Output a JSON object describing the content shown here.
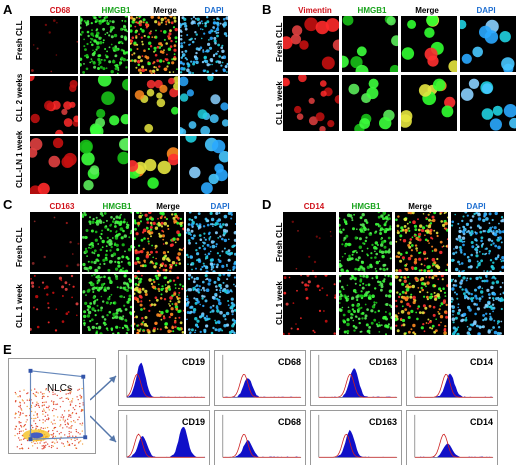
{
  "panels": {
    "A": {
      "letter": "A",
      "headers": [
        "CD68",
        "HMGB1",
        "Merge",
        "DAPI"
      ],
      "rows": [
        "Fresh CLL",
        "CLL 2 weeks",
        "CLL-LN 1 week"
      ]
    },
    "B": {
      "letter": "B",
      "headers": [
        "Vimentin",
        "HMGB1",
        "Merge",
        "DAPI"
      ],
      "rows": [
        "Fresh CLL",
        "CLL 1 week"
      ]
    },
    "C": {
      "letter": "C",
      "headers": [
        "CD163",
        "HMGB1",
        "Merge",
        "DAPI"
      ],
      "rows": [
        "Fresh CLL",
        "CLL 1 week"
      ]
    },
    "D": {
      "letter": "D",
      "headers": [
        "CD14",
        "HMGB1",
        "Merge",
        "DAPI"
      ],
      "rows": [
        "Fresh CLL",
        "CLL 1 week"
      ]
    },
    "E": {
      "letter": "E",
      "gate_label": "NLCs",
      "markers": [
        "CD19",
        "CD68",
        "CD163",
        "CD14"
      ]
    }
  },
  "colors": {
    "red_stain": "#d0121b",
    "green_stain": "#17a31b",
    "blue_stain": "#1f6fd1",
    "histogram_fill": "#1010c8",
    "isotype_line": "#cc2020"
  }
}
